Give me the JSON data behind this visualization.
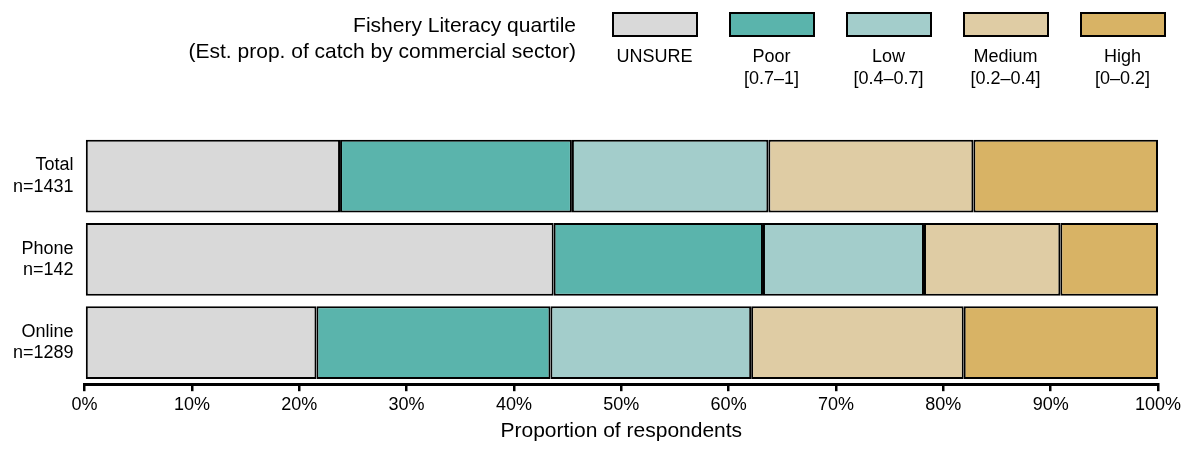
{
  "chart_data": {
    "type": "bar",
    "orientation": "horizontal",
    "stacked": true,
    "legend": "top",
    "grid": false,
    "legend_title": "Fishery Literacy quartile\n(Est. prop. of catch by commercial sector)",
    "xlabel": "Proportion of respondents",
    "categories": [
      "Total\nn=1431",
      "Phone\nn=142",
      "Online\nn=1289"
    ],
    "series": [
      {
        "name": "UNSURE",
        "color": "#d9d9d9",
        "values": [
          23.8,
          43.7,
          21.6
        ]
      },
      {
        "name": "Poor\n[0.7–1]",
        "color": "#5ab4ac",
        "values": [
          21.6,
          19.5,
          21.8
        ]
      },
      {
        "name": "Low\n[0.4–0.7]",
        "color": "#a3cdcb",
        "values": [
          18.3,
          15.0,
          18.7
        ]
      },
      {
        "name": "Medium\n[0.2–0.4]",
        "color": "#dfcca4",
        "values": [
          19.1,
          12.7,
          19.8
        ]
      },
      {
        "name": "High\n[0–0.2]",
        "color": "#d8b365",
        "values": [
          17.2,
          9.1,
          18.1
        ]
      }
    ],
    "xlim": [
      0,
      100
    ],
    "xticks": [
      {
        "value": 0,
        "label": "0%"
      },
      {
        "value": 10,
        "label": "10%"
      },
      {
        "value": 20,
        "label": "20%"
      },
      {
        "value": 30,
        "label": "30%"
      },
      {
        "value": 40,
        "label": "40%"
      },
      {
        "value": 50,
        "label": "50%"
      },
      {
        "value": 60,
        "label": "60%"
      },
      {
        "value": 70,
        "label": "70%"
      },
      {
        "value": 80,
        "label": "80%"
      },
      {
        "value": 90,
        "label": "90%"
      },
      {
        "value": 100,
        "label": "100%"
      }
    ]
  }
}
